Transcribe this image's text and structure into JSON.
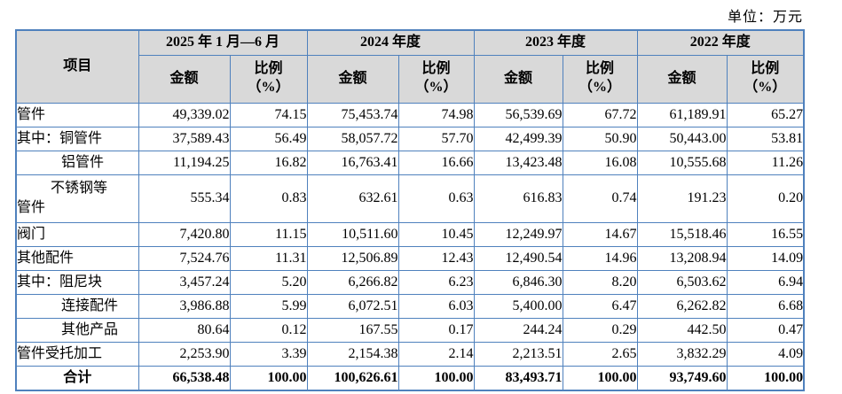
{
  "unit_label": "单位：万元",
  "colors": {
    "table_border": "#4F81BD",
    "header_background": "#D9D9D9",
    "text": "#000000"
  },
  "table": {
    "item_header": "项目",
    "amount_header": "金额",
    "ratio_header": "比例\n（%）",
    "periods": [
      "2025 年 1 月—6 月",
      "2024 年度",
      "2023 年度",
      "2022 年度"
    ],
    "rows": [
      {
        "label": "管件",
        "style": "plain",
        "values": [
          "49,339.02",
          "74.15",
          "75,453.74",
          "74.98",
          "56,539.69",
          "67.72",
          "61,189.91",
          "65.27"
        ]
      },
      {
        "label": "其中：铜管件",
        "style": "plain",
        "values": [
          "37,589.43",
          "56.49",
          "58,057.72",
          "57.70",
          "42,499.39",
          "50.90",
          "50,443.00",
          "53.81"
        ]
      },
      {
        "label": "铝管件",
        "style": "indent",
        "values": [
          "11,194.25",
          "16.82",
          "16,763.41",
          "16.66",
          "13,423.48",
          "16.08",
          "10,555.68",
          "11.26"
        ]
      },
      {
        "label": "不锈钢等\n管件",
        "style": "hang",
        "values": [
          "555.34",
          "0.83",
          "632.61",
          "0.63",
          "616.83",
          "0.74",
          "191.23",
          "0.20"
        ]
      },
      {
        "label": "阀门",
        "style": "plain",
        "values": [
          "7,420.80",
          "11.15",
          "10,511.60",
          "10.45",
          "12,249.97",
          "14.67",
          "15,518.46",
          "16.55"
        ]
      },
      {
        "label": "其他配件",
        "style": "plain",
        "values": [
          "7,524.76",
          "11.31",
          "12,506.89",
          "12.43",
          "12,490.54",
          "14.96",
          "13,208.94",
          "14.09"
        ]
      },
      {
        "label": "其中：阻尼块",
        "style": "plain",
        "values": [
          "3,457.24",
          "5.20",
          "6,266.82",
          "6.23",
          "6,846.30",
          "8.20",
          "6,503.62",
          "6.94"
        ]
      },
      {
        "label": "连接配件",
        "style": "indent",
        "values": [
          "3,986.88",
          "5.99",
          "6,072.51",
          "6.03",
          "5,400.00",
          "6.47",
          "6,262.82",
          "6.68"
        ]
      },
      {
        "label": "其他产品",
        "style": "indent",
        "values": [
          "80.64",
          "0.12",
          "167.55",
          "0.17",
          "244.24",
          "0.29",
          "442.50",
          "0.47"
        ]
      },
      {
        "label": "管件受托加工",
        "style": "plain",
        "values": [
          "2,253.90",
          "3.39",
          "2,154.38",
          "2.14",
          "2,213.51",
          "2.65",
          "3,832.29",
          "4.09"
        ]
      },
      {
        "label": "合计",
        "style": "total",
        "values": [
          "66,538.48",
          "100.00",
          "100,626.61",
          "100.00",
          "83,493.71",
          "100.00",
          "93,749.60",
          "100.00"
        ]
      }
    ]
  }
}
